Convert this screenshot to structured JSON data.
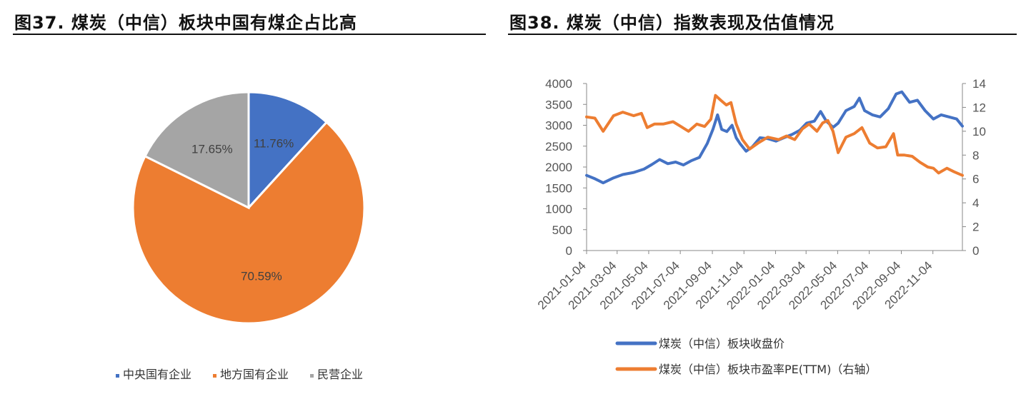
{
  "titles": {
    "left": "图37. 煤炭（中信）板块中国有煤企占比高",
    "right": "图38. 煤炭（中信）指数表现及估值情况"
  },
  "chart_data": [
    {
      "type": "pie",
      "title": "",
      "slices": [
        {
          "name": "中央国有企业",
          "value": 11.76,
          "label": "11.76%",
          "color": "#4472C4"
        },
        {
          "name": "地方国有企业",
          "value": 70.59,
          "label": "70.59%",
          "color": "#ED7D31"
        },
        {
          "name": "民营企业",
          "value": 17.65,
          "label": "17.65%",
          "color": "#A5A5A5"
        }
      ],
      "legend_position": "bottom"
    },
    {
      "type": "line",
      "title": "",
      "x_ticks": [
        "2021-01-04",
        "2021-03-04",
        "2021-05-04",
        "2021-07-04",
        "2021-09-04",
        "2021-11-04",
        "2022-01-04",
        "2022-03-04",
        "2022-05-04",
        "2022-07-04",
        "2022-09-04",
        "2022-11-04"
      ],
      "x_range": [
        "2021-01-04",
        "2022-12-31"
      ],
      "y_left": {
        "min": 0,
        "max": 4000,
        "ticks": [
          "0",
          "500",
          "1000",
          "1500",
          "2000",
          "2500",
          "3000",
          "3500",
          "4000"
        ]
      },
      "y_right": {
        "min": 0,
        "max": 14,
        "ticks": [
          "0",
          "2",
          "4",
          "6",
          "8",
          "10",
          "12",
          "14"
        ]
      },
      "grid": false,
      "legend_position": "bottom",
      "series": [
        {
          "name": "煤炭（中信）板块收盘价",
          "axis": "left",
          "color": "#4472C4",
          "points": [
            [
              "2021-01-04",
              1800
            ],
            [
              "2021-01-20",
              1720
            ],
            [
              "2021-02-05",
              1620
            ],
            [
              "2021-02-25",
              1740
            ],
            [
              "2021-03-15",
              1820
            ],
            [
              "2021-04-05",
              1870
            ],
            [
              "2021-04-25",
              1950
            ],
            [
              "2021-05-10",
              2060
            ],
            [
              "2021-05-25",
              2180
            ],
            [
              "2021-06-10",
              2080
            ],
            [
              "2021-06-25",
              2120
            ],
            [
              "2021-07-10",
              2050
            ],
            [
              "2021-07-25",
              2150
            ],
            [
              "2021-08-10",
              2230
            ],
            [
              "2021-08-25",
              2560
            ],
            [
              "2021-09-05",
              2900
            ],
            [
              "2021-09-14",
              3250
            ],
            [
              "2021-09-22",
              2900
            ],
            [
              "2021-10-02",
              2850
            ],
            [
              "2021-10-12",
              3000
            ],
            [
              "2021-10-20",
              2700
            ],
            [
              "2021-10-28",
              2550
            ],
            [
              "2021-11-08",
              2380
            ],
            [
              "2021-11-20",
              2480
            ],
            [
              "2021-12-05",
              2700
            ],
            [
              "2021-12-20",
              2680
            ],
            [
              "2022-01-05",
              2620
            ],
            [
              "2022-01-20",
              2700
            ],
            [
              "2022-02-05",
              2780
            ],
            [
              "2022-02-20",
              2880
            ],
            [
              "2022-03-05",
              3050
            ],
            [
              "2022-03-20",
              3100
            ],
            [
              "2022-04-01",
              3330
            ],
            [
              "2022-04-12",
              3100
            ],
            [
              "2022-04-25",
              2950
            ],
            [
              "2022-05-05",
              3050
            ],
            [
              "2022-05-20",
              3350
            ],
            [
              "2022-06-05",
              3450
            ],
            [
              "2022-06-15",
              3650
            ],
            [
              "2022-06-25",
              3350
            ],
            [
              "2022-07-10",
              3250
            ],
            [
              "2022-07-25",
              3200
            ],
            [
              "2022-08-10",
              3400
            ],
            [
              "2022-08-25",
              3750
            ],
            [
              "2022-09-05",
              3800
            ],
            [
              "2022-09-20",
              3550
            ],
            [
              "2022-10-05",
              3600
            ],
            [
              "2022-10-20",
              3350
            ],
            [
              "2022-11-05",
              3150
            ],
            [
              "2022-11-20",
              3250
            ],
            [
              "2022-12-05",
              3200
            ],
            [
              "2022-12-20",
              3150
            ],
            [
              "2022-12-31",
              2980
            ]
          ]
        },
        {
          "name": "煤炭（中信）板块市盈率PE(TTM)（右轴）",
          "axis": "right",
          "color": "#ED7D31",
          "points": [
            [
              "2021-01-04",
              11.2
            ],
            [
              "2021-01-20",
              11.1
            ],
            [
              "2021-02-05",
              10.0
            ],
            [
              "2021-02-25",
              11.3
            ],
            [
              "2021-03-15",
              11.6
            ],
            [
              "2021-04-05",
              11.3
            ],
            [
              "2021-04-20",
              11.5
            ],
            [
              "2021-05-01",
              10.3
            ],
            [
              "2021-05-15",
              10.6
            ],
            [
              "2021-06-01",
              10.6
            ],
            [
              "2021-06-20",
              10.8
            ],
            [
              "2021-07-05",
              10.4
            ],
            [
              "2021-07-20",
              10.0
            ],
            [
              "2021-08-05",
              10.6
            ],
            [
              "2021-08-20",
              10.4
            ],
            [
              "2021-09-01",
              11.0
            ],
            [
              "2021-09-10",
              13.0
            ],
            [
              "2021-09-20",
              12.6
            ],
            [
              "2021-10-01",
              12.2
            ],
            [
              "2021-10-10",
              12.4
            ],
            [
              "2021-10-20",
              10.6
            ],
            [
              "2021-11-01",
              9.3
            ],
            [
              "2021-11-15",
              8.5
            ],
            [
              "2021-12-01",
              9.0
            ],
            [
              "2021-12-20",
              9.5
            ],
            [
              "2022-01-10",
              9.3
            ],
            [
              "2022-01-25",
              9.6
            ],
            [
              "2022-02-10",
              9.3
            ],
            [
              "2022-02-25",
              10.2
            ],
            [
              "2022-03-10",
              10.6
            ],
            [
              "2022-03-25",
              10.0
            ],
            [
              "2022-04-05",
              10.7
            ],
            [
              "2022-04-15",
              10.9
            ],
            [
              "2022-04-25",
              10.0
            ],
            [
              "2022-05-05",
              8.2
            ],
            [
              "2022-05-20",
              9.5
            ],
            [
              "2022-06-05",
              9.8
            ],
            [
              "2022-06-20",
              10.3
            ],
            [
              "2022-07-05",
              9.0
            ],
            [
              "2022-07-20",
              8.6
            ],
            [
              "2022-08-05",
              8.7
            ],
            [
              "2022-08-20",
              9.8
            ],
            [
              "2022-08-28",
              8.0
            ],
            [
              "2022-09-10",
              8.0
            ],
            [
              "2022-09-25",
              7.9
            ],
            [
              "2022-10-10",
              7.4
            ],
            [
              "2022-10-25",
              7.0
            ],
            [
              "2022-11-05",
              6.9
            ],
            [
              "2022-11-15",
              6.5
            ],
            [
              "2022-12-01",
              6.9
            ],
            [
              "2022-12-15",
              6.6
            ],
            [
              "2022-12-31",
              6.3
            ]
          ]
        }
      ]
    }
  ]
}
